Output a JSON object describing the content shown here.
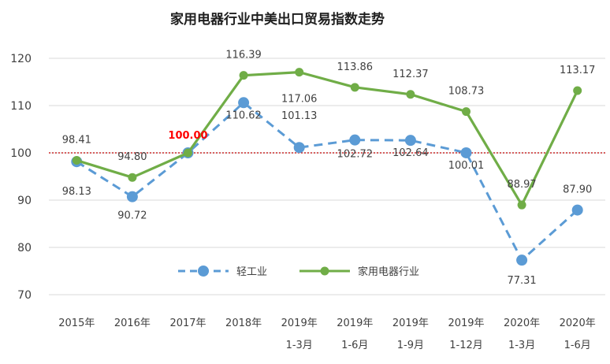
{
  "chart_data": {
    "type": "line",
    "title": "家用电器行业中美出口贸易指数走势",
    "xlabel": "",
    "ylabel": "",
    "ylim": [
      70,
      120
    ],
    "yticks": [
      70,
      80,
      90,
      100,
      110,
      120
    ],
    "grid": true,
    "reference_line": {
      "value": 100,
      "color": "#c00000",
      "label": "100.00",
      "label_color": "#ff0000"
    },
    "categories": [
      [
        "2015年",
        ""
      ],
      [
        "2016年",
        ""
      ],
      [
        "2017年",
        ""
      ],
      [
        "2018年",
        ""
      ],
      [
        "2019年",
        "1-3月"
      ],
      [
        "2019年",
        "1-6月"
      ],
      [
        "2019年",
        "1-9月"
      ],
      [
        "2019年",
        "1-12月"
      ],
      [
        "2020年",
        "1-3月"
      ],
      [
        "2020年",
        "1-6月"
      ]
    ],
    "series": [
      {
        "name": "轻工业",
        "color": "#5b9bd5",
        "style": "dashed",
        "values": [
          98.13,
          90.72,
          100.0,
          110.62,
          101.13,
          102.72,
          102.64,
          100.01,
          77.31,
          87.9
        ],
        "labels": [
          "98.13",
          "90.72",
          "",
          "110.62",
          "101.13",
          "102.72",
          "102.64",
          "100.01",
          "77.31",
          "87.90"
        ]
      },
      {
        "name": "家用电器行业",
        "color": "#70ad47",
        "style": "solid",
        "values": [
          98.41,
          94.8,
          100.0,
          116.39,
          117.06,
          113.86,
          112.37,
          108.73,
          88.97,
          113.17
        ],
        "labels": [
          "98.41",
          "94.80",
          "",
          "116.39",
          "117.06",
          "113.86",
          "112.37",
          "108.73",
          "88.97",
          "113.17"
        ]
      }
    ],
    "legend": {
      "placement": "bottom-center"
    }
  }
}
